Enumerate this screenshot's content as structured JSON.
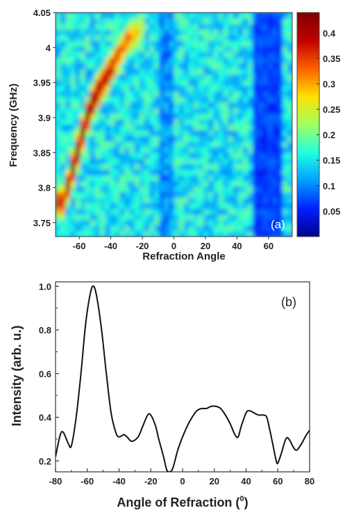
{
  "chart_data": [
    {
      "type": "heatmap",
      "panel_label": "(a)",
      "xlabel": "Refraction Angle",
      "ylabel": "Frequency (GHz)",
      "xlim": [
        -75,
        75
      ],
      "ylim": [
        3.73,
        4.05
      ],
      "x_ticks": [
        -60,
        -40,
        -20,
        0,
        20,
        40,
        60
      ],
      "y_ticks": [
        3.75,
        3.8,
        3.85,
        3.9,
        3.95,
        4.0,
        4.05
      ],
      "y_tick_labels": [
        "3.75",
        "3.8",
        "3.85",
        "3.9",
        "3.95",
        "4",
        "4.05"
      ],
      "colorbar": {
        "range": [
          0,
          0.44
        ],
        "ticks": [
          0.05,
          0.1,
          0.15,
          0.2,
          0.25,
          0.3,
          0.35,
          0.4
        ],
        "tick_labels": [
          "0.05",
          "0.1",
          "0.15",
          "0.2",
          "0.25",
          "0.3",
          "0.35",
          "0.4"
        ],
        "colormap": [
          "#00008f",
          "#0020ff",
          "#00a0ff",
          "#20ffe0",
          "#a0ff60",
          "#ffe000",
          "#ff6000",
          "#c00000",
          "#800000"
        ]
      },
      "ridge": {
        "x": [
          -70,
          -65,
          -60,
          -55,
          -50,
          -45,
          -40,
          -35,
          -30,
          -25,
          -20
        ],
        "y": [
          3.78,
          3.82,
          3.86,
          3.9,
          3.93,
          3.95,
          3.97,
          3.99,
          4.01,
          4.02,
          4.03
        ],
        "intensity": [
          0.34,
          0.4,
          0.42,
          0.41,
          0.39,
          0.37,
          0.36,
          0.32,
          0.3,
          0.27,
          0.22
        ]
      }
    },
    {
      "type": "line",
      "panel_label": "(b)",
      "xlabel": "Angle of Refraction (",
      "xlabel_sup": "0",
      "xlabel_end": ")",
      "ylabel": "Intensity (arb. u.)",
      "xlim": [
        -80,
        80
      ],
      "ylim": [
        0.15,
        1.02
      ],
      "x_ticks": [
        -80,
        -60,
        -40,
        -20,
        0,
        20,
        40,
        60,
        80
      ],
      "y_ticks": [
        0.2,
        0.4,
        0.6,
        0.8,
        1.0
      ],
      "y_tick_labels": [
        "0.2",
        "0.4",
        "0.6",
        "0.8",
        "1.0"
      ],
      "series": [
        {
          "x": [
            -80,
            -77,
            -75,
            -72,
            -70,
            -67,
            -64,
            -61,
            -58,
            -56,
            -54,
            -51,
            -48,
            -45,
            -42,
            -40,
            -37,
            -35,
            -32,
            -28,
            -25,
            -22,
            -20,
            -17,
            -15,
            -12,
            -10,
            -8,
            -6,
            -3,
            0,
            3,
            6,
            9,
            12,
            15,
            18,
            21,
            24,
            27,
            30,
            33,
            35,
            37,
            40,
            42,
            45,
            48,
            51,
            53,
            55,
            57,
            59,
            60,
            62,
            65,
            67,
            70,
            72,
            75,
            78,
            80
          ],
          "y": [
            0.22,
            0.32,
            0.33,
            0.28,
            0.27,
            0.4,
            0.6,
            0.83,
            0.97,
            1.0,
            0.95,
            0.8,
            0.6,
            0.42,
            0.33,
            0.31,
            0.32,
            0.31,
            0.29,
            0.31,
            0.36,
            0.41,
            0.41,
            0.36,
            0.3,
            0.22,
            0.16,
            0.15,
            0.17,
            0.25,
            0.31,
            0.36,
            0.4,
            0.43,
            0.44,
            0.44,
            0.45,
            0.45,
            0.44,
            0.41,
            0.37,
            0.32,
            0.31,
            0.36,
            0.42,
            0.43,
            0.42,
            0.41,
            0.41,
            0.4,
            0.34,
            0.27,
            0.2,
            0.19,
            0.23,
            0.3,
            0.3,
            0.26,
            0.25,
            0.28,
            0.32,
            0.34
          ]
        }
      ]
    }
  ]
}
